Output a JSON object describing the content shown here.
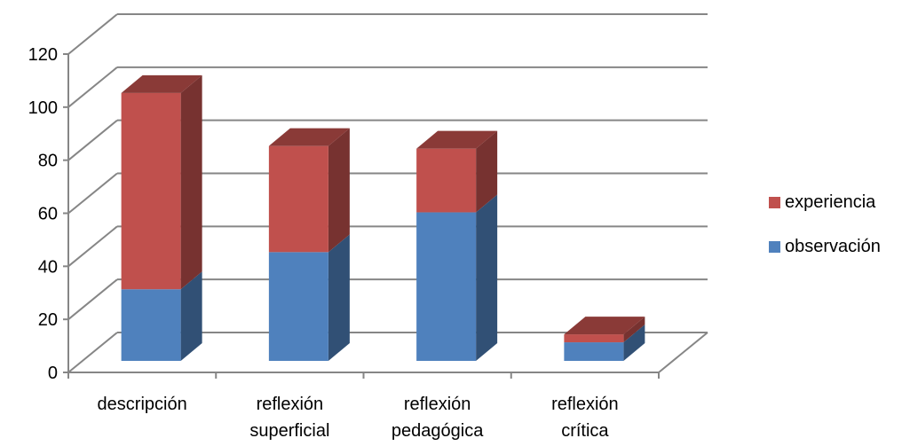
{
  "chart_data": {
    "type": "bar",
    "stacked": true,
    "three_d": true,
    "categories": [
      [
        "descripción"
      ],
      [
        "reflexión",
        "superficial"
      ],
      [
        "reflexión",
        "pedagógica"
      ],
      [
        "reflexión",
        "crítica"
      ]
    ],
    "series": [
      {
        "name": "observación",
        "values": [
          27,
          41,
          56,
          7
        ],
        "color": "#4F81BD"
      },
      {
        "name": "experiencia",
        "values": [
          74,
          40,
          24,
          3
        ],
        "color": "#C0504D"
      }
    ],
    "yticks": [
      "0",
      "20",
      "40",
      "60",
      "80",
      "100",
      "120"
    ],
    "ylim": [
      0,
      120
    ],
    "grid": true,
    "legend_position": "right",
    "legend_order": [
      "experiencia",
      "observación"
    ]
  }
}
